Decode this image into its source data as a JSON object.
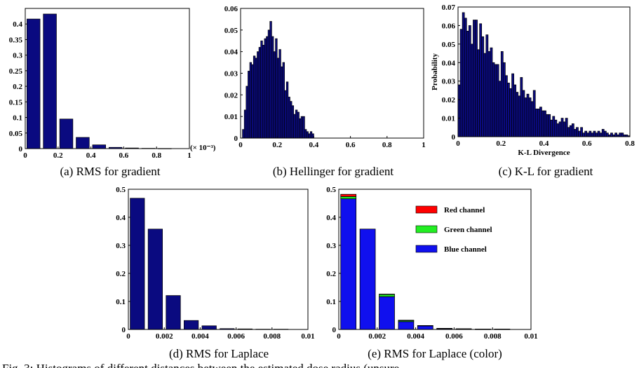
{
  "colors": {
    "navy": "#0a0a80",
    "red": "#ff0000",
    "green": "#22ee22",
    "blue": "#1010ee"
  },
  "figure_caption": "Fig. 3: Histograms of different distances between the estimated dose radius (unsure",
  "chart_data": [
    {
      "id": "a",
      "type": "bar",
      "caption": "(a) RMS for gradient",
      "x_exponent_label": "(× 10⁻³)",
      "xlim": [
        0,
        1
      ],
      "ylim": [
        0,
        0.45
      ],
      "bar_width": 0.08,
      "xticks": [
        "0",
        "0.2",
        "0.4",
        "0.6",
        "0.8",
        "1"
      ],
      "xtick_values": [
        0,
        0.2,
        0.4,
        0.6,
        0.8,
        1
      ],
      "yticks": [
        "0",
        "0.05",
        "0.1",
        "0.15",
        "0.2",
        "0.25",
        "0.3",
        "0.35",
        "0.4"
      ],
      "ytick_values": [
        0,
        0.05,
        0.1,
        0.15,
        0.2,
        0.25,
        0.3,
        0.35,
        0.4
      ],
      "x": [
        0.05,
        0.15,
        0.25,
        0.35,
        0.45,
        0.55,
        0.65,
        0.75,
        0.85
      ],
      "values": [
        0.416,
        0.432,
        0.095,
        0.036,
        0.012,
        0.004,
        0.002,
        0.001,
        0.0005
      ]
    },
    {
      "id": "b",
      "type": "bar",
      "caption": "(b) Hellinger for gradient",
      "xlim": [
        0,
        1
      ],
      "ylim": [
        0,
        0.06
      ],
      "bar_width": 0.01,
      "xticks": [
        "0",
        "0.2",
        "0.4",
        "0.6",
        "0.8",
        "1"
      ],
      "xtick_values": [
        0,
        0.2,
        0.4,
        0.6,
        0.8,
        1
      ],
      "yticks": [
        "0",
        "0.01",
        "0.02",
        "0.03",
        "0.04",
        "0.05",
        "0.06"
      ],
      "ytick_values": [
        0,
        0.01,
        0.02,
        0.03,
        0.04,
        0.05,
        0.06
      ],
      "x": [
        0.015,
        0.025,
        0.035,
        0.045,
        0.055,
        0.065,
        0.075,
        0.085,
        0.095,
        0.105,
        0.115,
        0.125,
        0.135,
        0.145,
        0.155,
        0.165,
        0.175,
        0.185,
        0.195,
        0.205,
        0.215,
        0.225,
        0.235,
        0.245,
        0.255,
        0.265,
        0.275,
        0.285,
        0.295,
        0.305,
        0.315,
        0.325,
        0.335,
        0.345,
        0.355,
        0.365,
        0.375,
        0.385,
        0.395
      ],
      "values": [
        0.004,
        0.013,
        0.024,
        0.031,
        0.035,
        0.034,
        0.038,
        0.037,
        0.04,
        0.042,
        0.045,
        0.043,
        0.046,
        0.047,
        0.05,
        0.054,
        0.047,
        0.04,
        0.046,
        0.037,
        0.041,
        0.033,
        0.035,
        0.022,
        0.026,
        0.019,
        0.017,
        0.015,
        0.011,
        0.013,
        0.012,
        0.009,
        0.01,
        0.01,
        0.004,
        0.003,
        0.002,
        0.003,
        0.002
      ]
    },
    {
      "id": "c",
      "type": "bar",
      "caption": "(c) K-L for gradient",
      "xlabel": "K-L Divergence",
      "ylabel": "Probability",
      "xlim": [
        0,
        0.8
      ],
      "ylim": [
        0,
        0.07
      ],
      "bar_width": 0.01,
      "xticks": [
        "0",
        "0.2",
        "0.4",
        "0.6",
        "0.8"
      ],
      "xtick_values": [
        0,
        0.2,
        0.4,
        0.6,
        0.8
      ],
      "yticks": [
        "0",
        "0.01",
        "0.02",
        "0.03",
        "0.04",
        "0.05",
        "0.06",
        "0.07"
      ],
      "ytick_values": [
        0,
        0.01,
        0.02,
        0.03,
        0.04,
        0.05,
        0.06,
        0.07
      ],
      "x": [
        0.005,
        0.015,
        0.025,
        0.035,
        0.045,
        0.055,
        0.065,
        0.075,
        0.085,
        0.095,
        0.105,
        0.115,
        0.125,
        0.135,
        0.145,
        0.155,
        0.165,
        0.175,
        0.185,
        0.195,
        0.205,
        0.215,
        0.225,
        0.235,
        0.245,
        0.255,
        0.265,
        0.275,
        0.285,
        0.295,
        0.305,
        0.315,
        0.325,
        0.335,
        0.345,
        0.355,
        0.365,
        0.375,
        0.385,
        0.395,
        0.405,
        0.415,
        0.425,
        0.435,
        0.445,
        0.455,
        0.465,
        0.475,
        0.485,
        0.495,
        0.505,
        0.515,
        0.525,
        0.535,
        0.545,
        0.555,
        0.565,
        0.575,
        0.585,
        0.595,
        0.605,
        0.615,
        0.625,
        0.635,
        0.645,
        0.655,
        0.665,
        0.675,
        0.685,
        0.695,
        0.705,
        0.715,
        0.725,
        0.735,
        0.745,
        0.755,
        0.765,
        0.775,
        0.785,
        0.795
      ],
      "values": [
        0.028,
        0.058,
        0.067,
        0.064,
        0.057,
        0.06,
        0.05,
        0.063,
        0.063,
        0.047,
        0.061,
        0.054,
        0.045,
        0.055,
        0.046,
        0.048,
        0.04,
        0.039,
        0.039,
        0.03,
        0.046,
        0.04,
        0.033,
        0.029,
        0.026,
        0.034,
        0.028,
        0.024,
        0.022,
        0.032,
        0.025,
        0.021,
        0.023,
        0.021,
        0.019,
        0.025,
        0.015,
        0.015,
        0.016,
        0.014,
        0.014,
        0.012,
        0.012,
        0.009,
        0.011,
        0.009,
        0.007,
        0.008,
        0.01,
        0.008,
        0.01,
        0.005,
        0.006,
        0.007,
        0.004,
        0.005,
        0.003,
        0.005,
        0.002,
        0.003,
        0.002,
        0.003,
        0.002,
        0.003,
        0.002,
        0.003,
        0.002,
        0.004,
        0.003,
        0.002,
        0.001,
        0.002,
        0.001,
        0.002,
        0.001,
        0.002,
        0.002,
        0.001,
        0.001,
        0.0005
      ]
    },
    {
      "id": "d",
      "type": "bar",
      "caption": "(d) RMS for Laplace",
      "xlim": [
        0,
        0.01
      ],
      "ylim": [
        0,
        0.5
      ],
      "bar_width": 0.0008,
      "xticks": [
        "0",
        "0.002",
        "0.004",
        "0.006",
        "0.008",
        "0.01"
      ],
      "xtick_values": [
        0,
        0.002,
        0.004,
        0.006,
        0.008,
        0.01
      ],
      "yticks": [
        "0",
        "0.1",
        "0.2",
        "0.3",
        "0.4",
        "0.5"
      ],
      "ytick_values": [
        0,
        0.1,
        0.2,
        0.3,
        0.4,
        0.5
      ],
      "x": [
        0.0005,
        0.0015,
        0.0025,
        0.0035,
        0.0045,
        0.0055,
        0.0065,
        0.0075,
        0.0085
      ],
      "values": [
        0.468,
        0.358,
        0.121,
        0.032,
        0.013,
        0.003,
        0.002,
        0.001,
        0.001
      ]
    },
    {
      "id": "e",
      "type": "bar",
      "stacked": true,
      "caption": "(e) RMS for Laplace (color)",
      "xlim": [
        0,
        0.01
      ],
      "ylim": [
        0,
        0.5
      ],
      "bar_width": 0.0008,
      "xticks": [
        "0",
        "0.002",
        "0.004",
        "0.006",
        "0.008",
        "0.01"
      ],
      "xtick_values": [
        0,
        0.002,
        0.004,
        0.006,
        0.008,
        0.01
      ],
      "yticks": [
        "0",
        "0.1",
        "0.2",
        "0.3",
        "0.4",
        "0.5"
      ],
      "ytick_values": [
        0,
        0.1,
        0.2,
        0.3,
        0.4,
        0.5
      ],
      "legend_position": "top-right",
      "x": [
        0.0005,
        0.0015,
        0.0025,
        0.0035,
        0.0045,
        0.0055,
        0.0065,
        0.0075,
        0.0085
      ],
      "series": [
        {
          "name": "Blue  channel",
          "color": "#1010ee",
          "values": [
            0.466,
            0.358,
            0.117,
            0.028,
            0.013,
            0.003,
            0.002,
            0.001,
            0.001
          ]
        },
        {
          "name": "Green  channel",
          "color": "#22ee22",
          "values": [
            0.008,
            0.0,
            0.008,
            0.004,
            0.001,
            0.001,
            0.0005,
            0.0003,
            0.0003
          ]
        },
        {
          "name": "Red  channel",
          "color": "#ff0000",
          "values": [
            0.008,
            0.0,
            0.001,
            0.001,
            0.0,
            0.0,
            0.0,
            0.0,
            0.0
          ]
        }
      ]
    }
  ]
}
